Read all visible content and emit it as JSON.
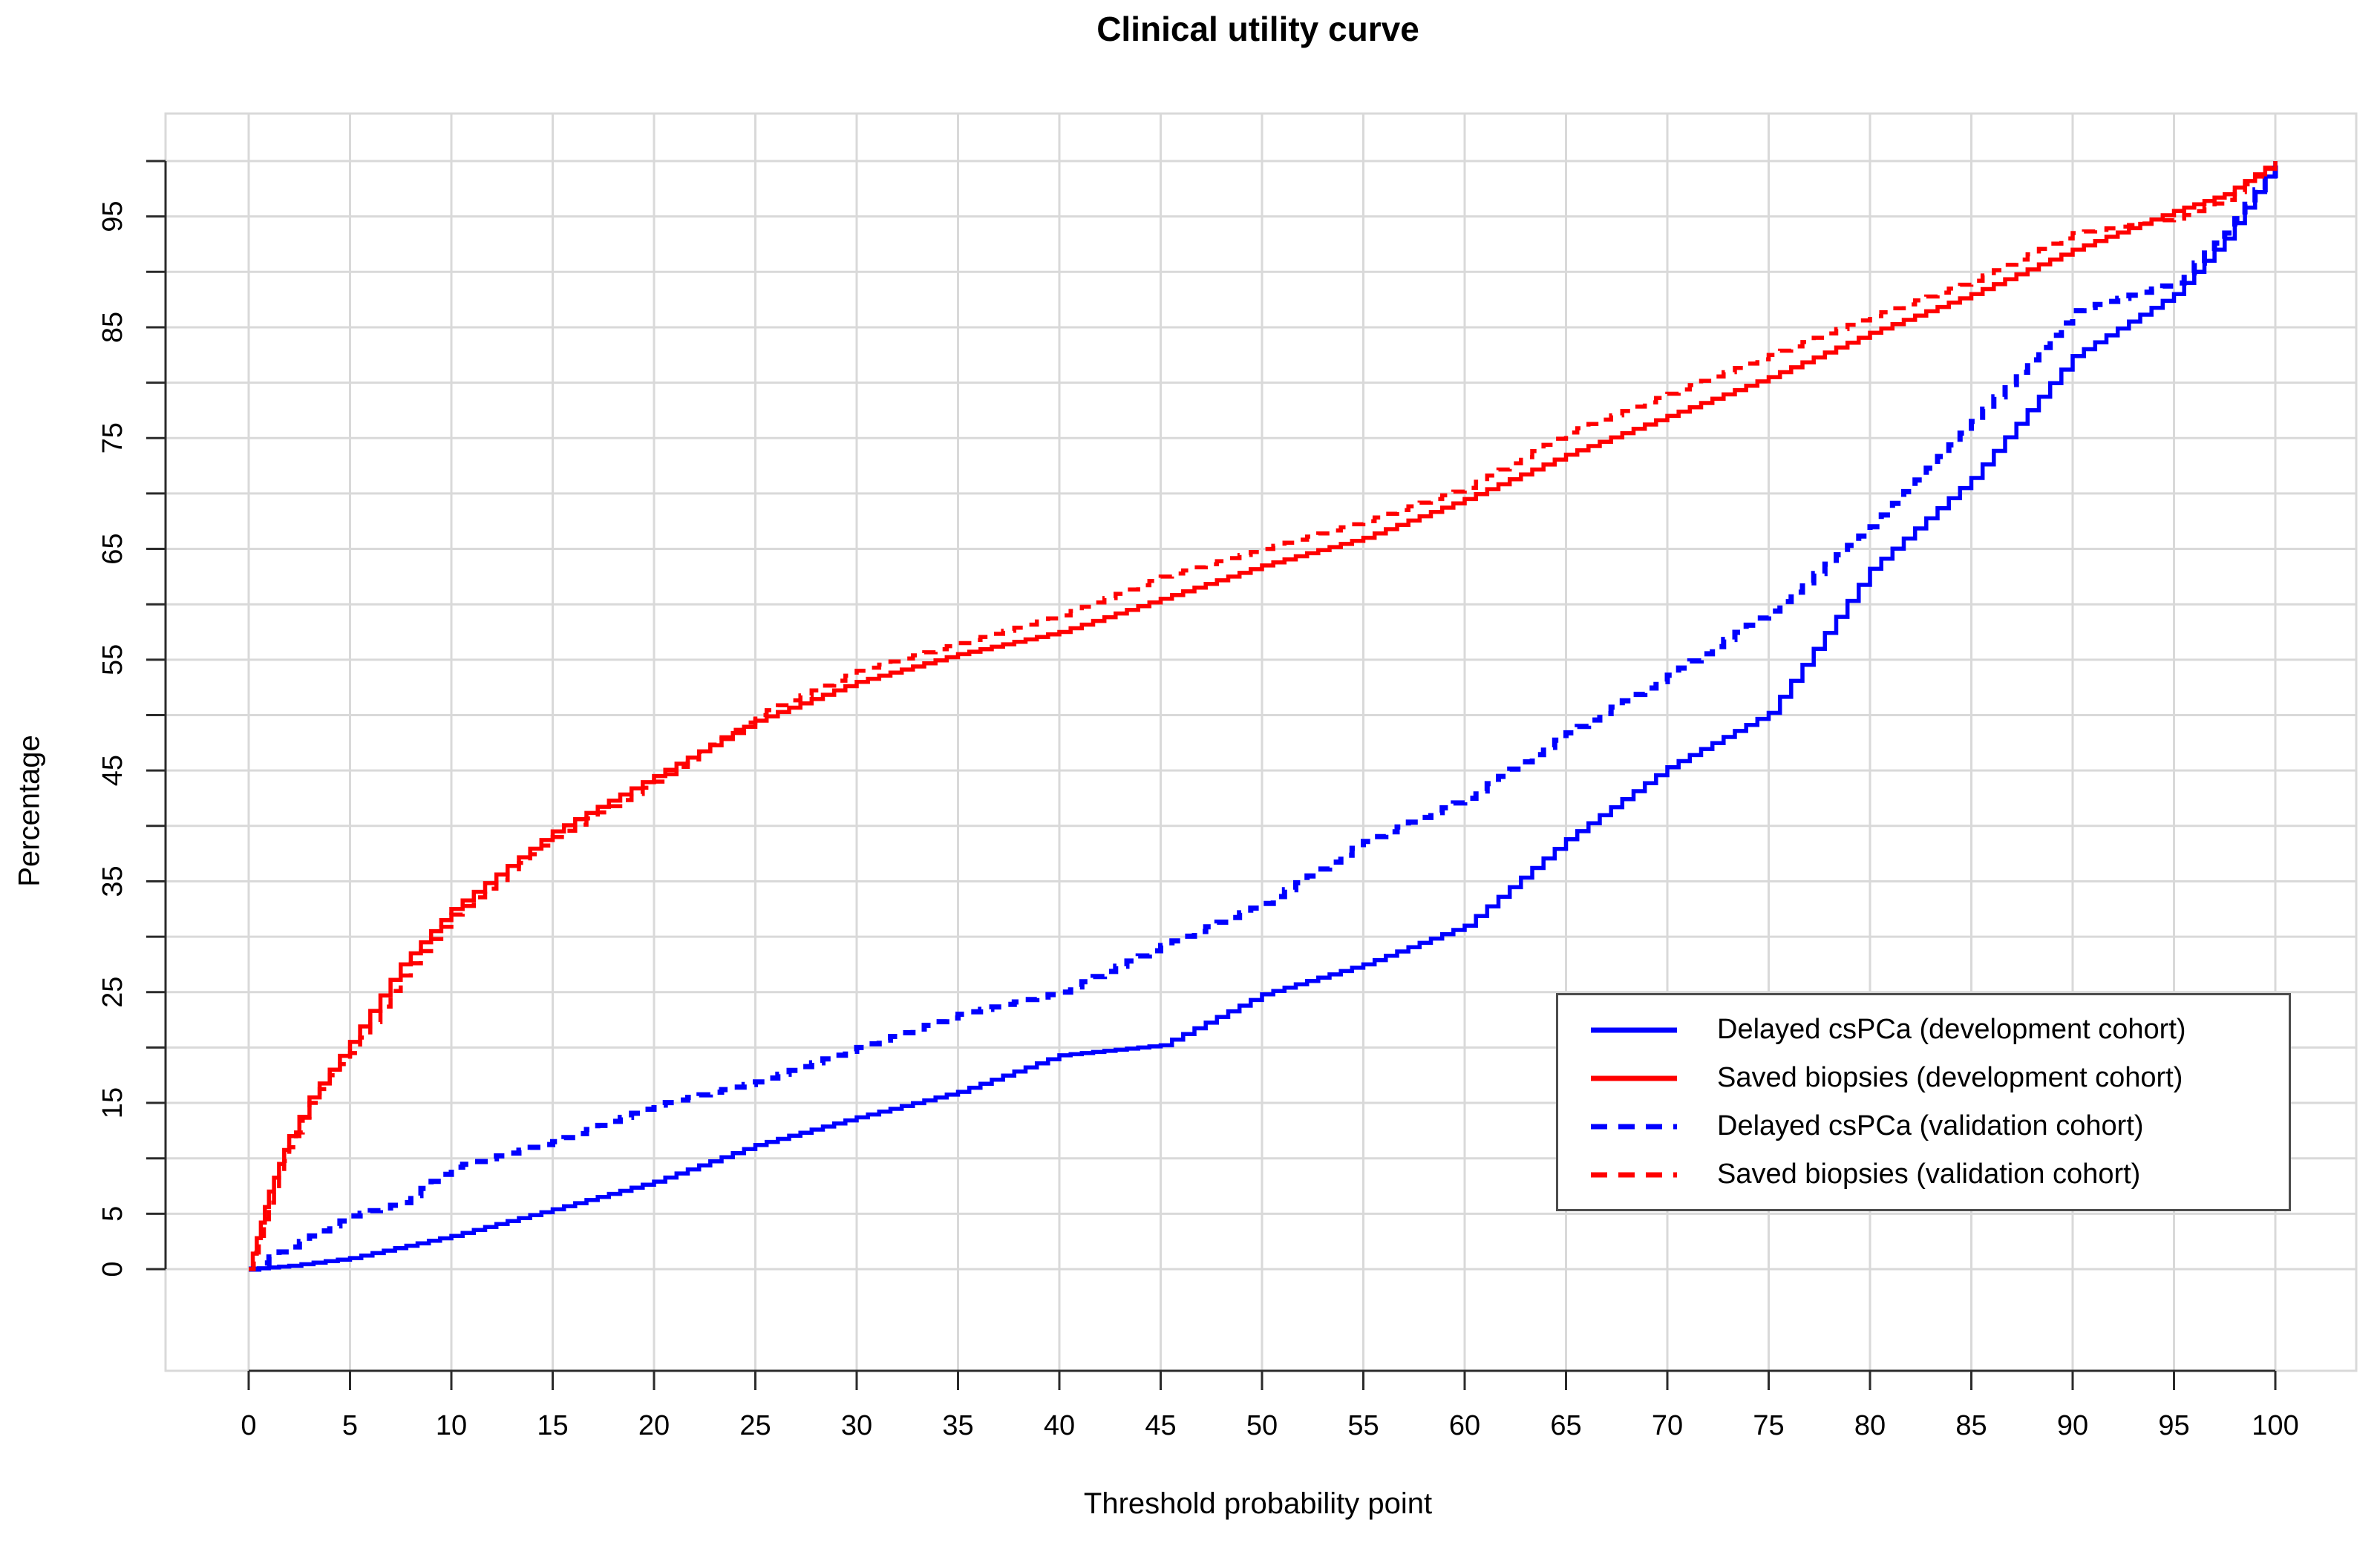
{
  "title": "Clinical utility curve",
  "x_axis": {
    "label": "Threshold probability point",
    "ticks": [
      0,
      5,
      10,
      15,
      20,
      25,
      30,
      35,
      40,
      45,
      50,
      55,
      60,
      65,
      70,
      75,
      80,
      85,
      90,
      95,
      100
    ],
    "range": [
      0,
      100
    ]
  },
  "y_axis": {
    "label": "Percentage",
    "ticks": [
      0,
      5,
      10,
      15,
      20,
      25,
      30,
      35,
      40,
      45,
      50,
      55,
      60,
      65,
      70,
      75,
      80,
      85,
      90,
      95,
      100
    ],
    "labeled_ticks": [
      0,
      5,
      15,
      25,
      35,
      45,
      55,
      65,
      75,
      85,
      95
    ],
    "range": [
      0,
      100
    ]
  },
  "colors": {
    "blue": "#0000ff",
    "red": "#ff0000",
    "grid": "#d9d9d9",
    "axis": "#2b2b2b",
    "legend_border": "#4d4d4d",
    "text": "#000000"
  },
  "chart_data": {
    "type": "line",
    "title": "Clinical utility curve",
    "xlabel": "Threshold probability point",
    "ylabel": "Percentage",
    "xlim": [
      0,
      100
    ],
    "ylim": [
      0,
      100
    ],
    "grid": true,
    "legend_position": "right-lower",
    "curve_style": "empirical step curves",
    "series": [
      {
        "name": "Delayed csPCa (development cohort)",
        "color_key": "blue",
        "dashed": false,
        "x": [
          0,
          2,
          5,
          10,
          15,
          20,
          25,
          30,
          35,
          40,
          45,
          50,
          55,
          60,
          65,
          70,
          75,
          80,
          85,
          90,
          95,
          97.5,
          100
        ],
        "y": [
          0,
          0.3,
          1,
          3,
          5.4,
          7.9,
          11.2,
          13.7,
          16,
          19.3,
          20.2,
          24.8,
          27.5,
          31,
          38.8,
          45.3,
          50.2,
          63.2,
          71.4,
          82.4,
          88,
          93,
          100
        ]
      },
      {
        "name": "Saved biopsies (development cohort)",
        "color_key": "red",
        "dashed": false,
        "x": [
          0,
          1,
          2,
          3,
          4,
          5,
          7.5,
          10,
          15,
          20,
          25,
          30,
          35,
          40,
          45,
          50,
          55,
          60,
          65,
          70,
          75,
          80,
          85,
          90,
          95,
          97.5,
          100
        ],
        "y": [
          0,
          7,
          12,
          15.5,
          18,
          20.5,
          27.5,
          32.5,
          39.5,
          44.5,
          49.5,
          53,
          55.5,
          57.5,
          60.5,
          63.5,
          66,
          69.5,
          73.5,
          77,
          80.5,
          84.5,
          88,
          92,
          95.5,
          97,
          100
        ]
      },
      {
        "name": "Delayed csPCa (validation cohort)",
        "color_key": "blue",
        "dashed": true,
        "x": [
          0,
          1,
          2,
          3,
          5,
          7.5,
          10,
          15,
          20,
          25,
          30,
          35,
          40,
          45,
          50,
          55,
          60,
          65,
          70,
          75,
          80,
          85,
          90,
          95,
          97.5,
          100
        ],
        "y": [
          0,
          1.1,
          2,
          3,
          4.8,
          6,
          9.2,
          11.5,
          14.8,
          16.9,
          20,
          23,
          25,
          29.2,
          33,
          38.6,
          42.5,
          48.4,
          53.6,
          59.4,
          67,
          76.5,
          86.5,
          89,
          93.5,
          100
        ]
      },
      {
        "name": "Saved biopsies (validation cohort)",
        "color_key": "red",
        "dashed": true,
        "x": [
          0,
          1,
          2,
          3,
          4,
          5,
          7.5,
          10,
          15,
          20,
          25,
          30,
          35,
          40,
          45,
          50,
          55,
          60,
          65,
          70,
          75,
          80,
          85,
          90,
          95,
          97.5,
          100
        ],
        "y": [
          0,
          6,
          11,
          15,
          17.5,
          19.5,
          26.5,
          32,
          39,
          44,
          50,
          54,
          56.5,
          59,
          62.5,
          65,
          67.5,
          70.5,
          75.5,
          79,
          82.5,
          86,
          89.2,
          93.5,
          94.8,
          96.5,
          100
        ]
      }
    ]
  }
}
